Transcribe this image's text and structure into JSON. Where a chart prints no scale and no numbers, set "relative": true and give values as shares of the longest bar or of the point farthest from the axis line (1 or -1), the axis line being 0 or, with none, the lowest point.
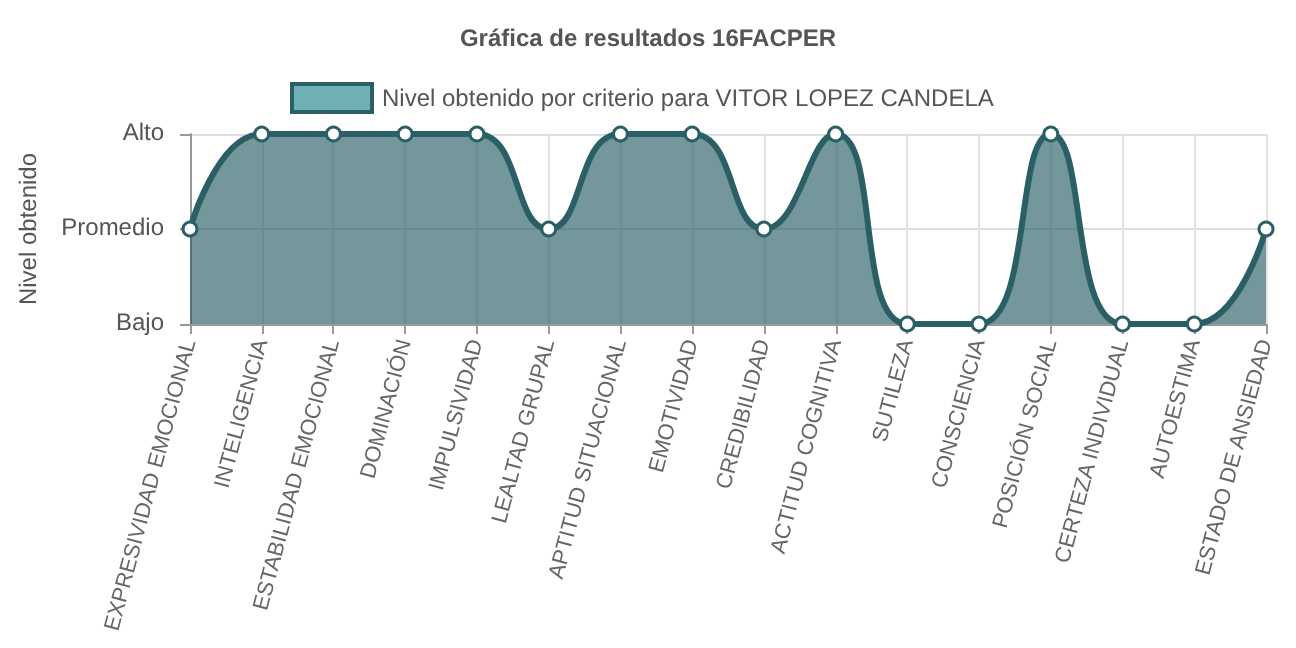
{
  "chart_data": {
    "type": "area",
    "title": "Gráfica de resultados 16FACPER",
    "ylabel": "Nivel obtenido",
    "categories": [
      "EXPRESIVIDAD EMOCIONAL",
      "INTELIGENCIA",
      "ESTABILIDAD EMOCIONAL",
      "DOMINACIÓN",
      "IMPULSIVIDAD",
      "LEALTAD GRUPAL",
      "APTITUD SITUACIONAL",
      "EMOTIVIDAD",
      "CREDIBILIDAD",
      "ACTITUD COGNITIVA",
      "SUTILEZA",
      "CONSCIENCIA",
      "POSICIÓN SOCIAL",
      "CERTEZA INDIVIDUAL",
      "AUTOESTIMA",
      "ESTADO DE ANSIEDAD"
    ],
    "series": [
      {
        "name": "Nivel obtenido por criterio para VITOR LOPEZ CANDELA",
        "color": "#2a5f66",
        "values": [
          0.5,
          1,
          1,
          1,
          1,
          0.5,
          1,
          1,
          0.5,
          1,
          0,
          0,
          1,
          0,
          0,
          0.5
        ]
      }
    ],
    "relative": true,
    "annotations": [
      "Bajo",
      "Promedio",
      "Alto"
    ],
    "grid": true,
    "legend": "top",
    "marker": "circle",
    "line_style": "solid"
  }
}
